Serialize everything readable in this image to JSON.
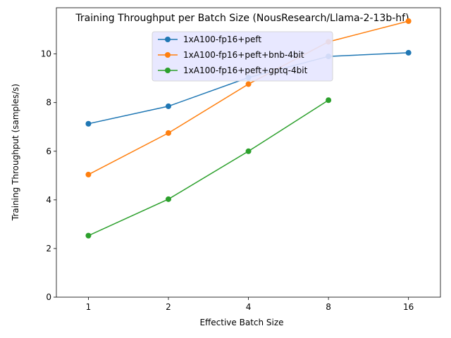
{
  "chart_data": {
    "type": "line",
    "title": "Training Throughput per Batch Size (NousResearch/Llama-2-13b-hf)",
    "xlabel": "Effective Batch Size",
    "ylabel": "Training Throughput (samples/s)",
    "x_scale": "log2",
    "x_ticks": [
      1,
      2,
      4,
      8,
      16
    ],
    "y_ticks": [
      0,
      2,
      4,
      6,
      8,
      10
    ],
    "ylim": [
      0,
      11.9
    ],
    "legend_position": "top-center",
    "grid": false,
    "series": [
      {
        "name": "1xA100-fp16+peft",
        "color": "#1f77b4",
        "x": [
          1,
          2,
          4,
          8,
          16
        ],
        "y": [
          7.13,
          7.85,
          9.03,
          9.9,
          10.05
        ]
      },
      {
        "name": "1xA100-fp16+peft+bnb-4bit",
        "color": "#ff7f0e",
        "x": [
          1,
          2,
          4,
          8,
          16
        ],
        "y": [
          5.04,
          6.75,
          8.76,
          10.5,
          11.35
        ]
      },
      {
        "name": "1xA100-fp16+peft+gptq-4bit",
        "color": "#2ca02c",
        "x": [
          1,
          2,
          4,
          8
        ],
        "y": [
          2.53,
          4.03,
          6.0,
          8.1
        ]
      }
    ]
  }
}
